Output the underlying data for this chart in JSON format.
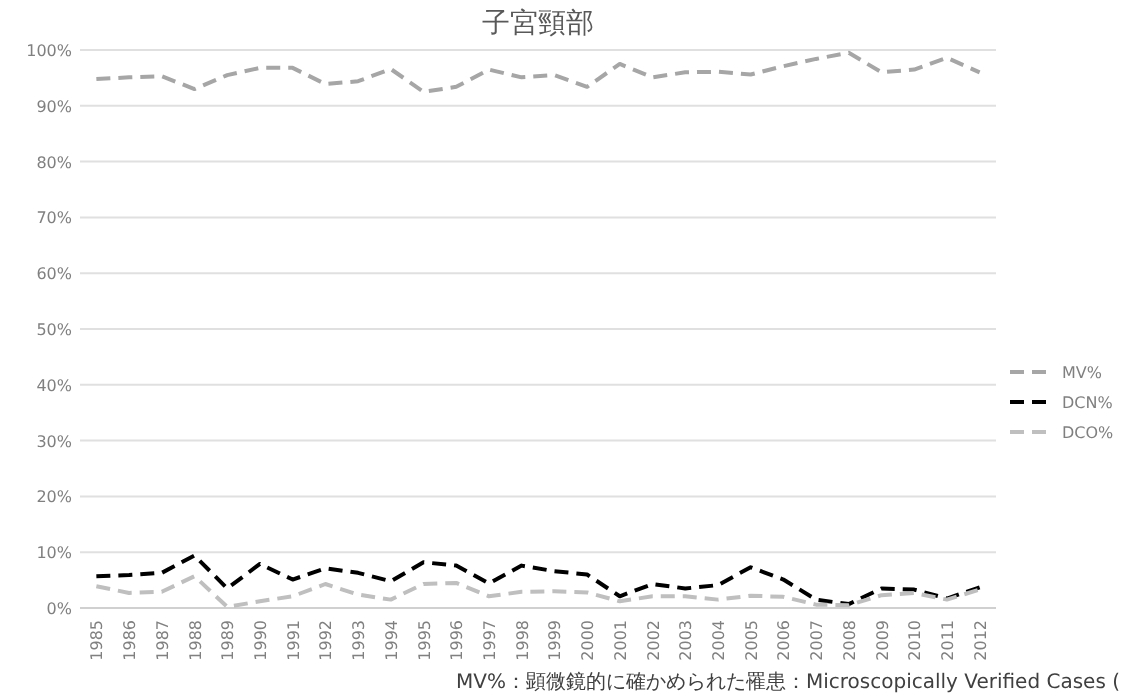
{
  "chart_data": {
    "type": "line",
    "title": "子宮頸部",
    "categories": [
      "1985",
      "1986",
      "1987",
      "1988",
      "1989",
      "1990",
      "1991",
      "1992",
      "1993",
      "1994",
      "1995",
      "1996",
      "1997",
      "1998",
      "1999",
      "2000",
      "2001",
      "2002",
      "2003",
      "2004",
      "2005",
      "2006",
      "2007",
      "2008",
      "2009",
      "2010",
      "2011",
      "2012"
    ],
    "series": [
      {
        "name": "MV%",
        "color": "#a6a6a6",
        "line_style": "dashed",
        "values": [
          94.8,
          95.1,
          95.3,
          93.0,
          95.5,
          96.8,
          96.8,
          93.9,
          94.4,
          96.6,
          92.5,
          93.4,
          96.5,
          95.1,
          95.5,
          93.4,
          97.5,
          95.1,
          96.0,
          96.1,
          95.6,
          97.1,
          98.4,
          99.5,
          96.0,
          96.5,
          98.6,
          96.0
        ]
      },
      {
        "name": "DCN%",
        "color": "#000000",
        "line_style": "dashed",
        "values": [
          5.7,
          5.9,
          6.3,
          9.4,
          3.5,
          7.9,
          5.1,
          7.1,
          6.3,
          4.8,
          8.2,
          7.6,
          4.4,
          7.6,
          6.6,
          6.0,
          2.1,
          4.3,
          3.5,
          4.1,
          7.3,
          5.1,
          1.5,
          0.7,
          3.5,
          3.3,
          1.7,
          3.7
        ]
      },
      {
        "name": "DCO%",
        "color": "#bfbfbf",
        "line_style": "dashed",
        "values": [
          3.9,
          2.7,
          2.9,
          5.7,
          0.2,
          1.2,
          2.1,
          4.3,
          2.4,
          1.5,
          4.3,
          4.5,
          2.1,
          2.9,
          3.0,
          2.8,
          1.2,
          2.1,
          2.1,
          1.5,
          2.2,
          2.0,
          0.6,
          0.5,
          2.3,
          2.7,
          1.5,
          3.3
        ]
      }
    ],
    "ylim": [
      0,
      100
    ],
    "yticks": [
      {
        "value": 0,
        "label": "0%"
      },
      {
        "value": 10,
        "label": "10%"
      },
      {
        "value": 20,
        "label": "20%"
      },
      {
        "value": 30,
        "label": "30%"
      },
      {
        "value": 40,
        "label": "40%"
      },
      {
        "value": 50,
        "label": "50%"
      },
      {
        "value": 60,
        "label": "60%"
      },
      {
        "value": 70,
        "label": "70%"
      },
      {
        "value": 80,
        "label": "80%"
      },
      {
        "value": 90,
        "label": "90%"
      },
      {
        "value": 100,
        "label": "100%"
      }
    ],
    "grid": "y",
    "legend": "right",
    "marker": "none",
    "annotations": [
      "MV%：顕微鏡的に確かめられた罹患：Microscopically Verified Cases ("
    ]
  }
}
